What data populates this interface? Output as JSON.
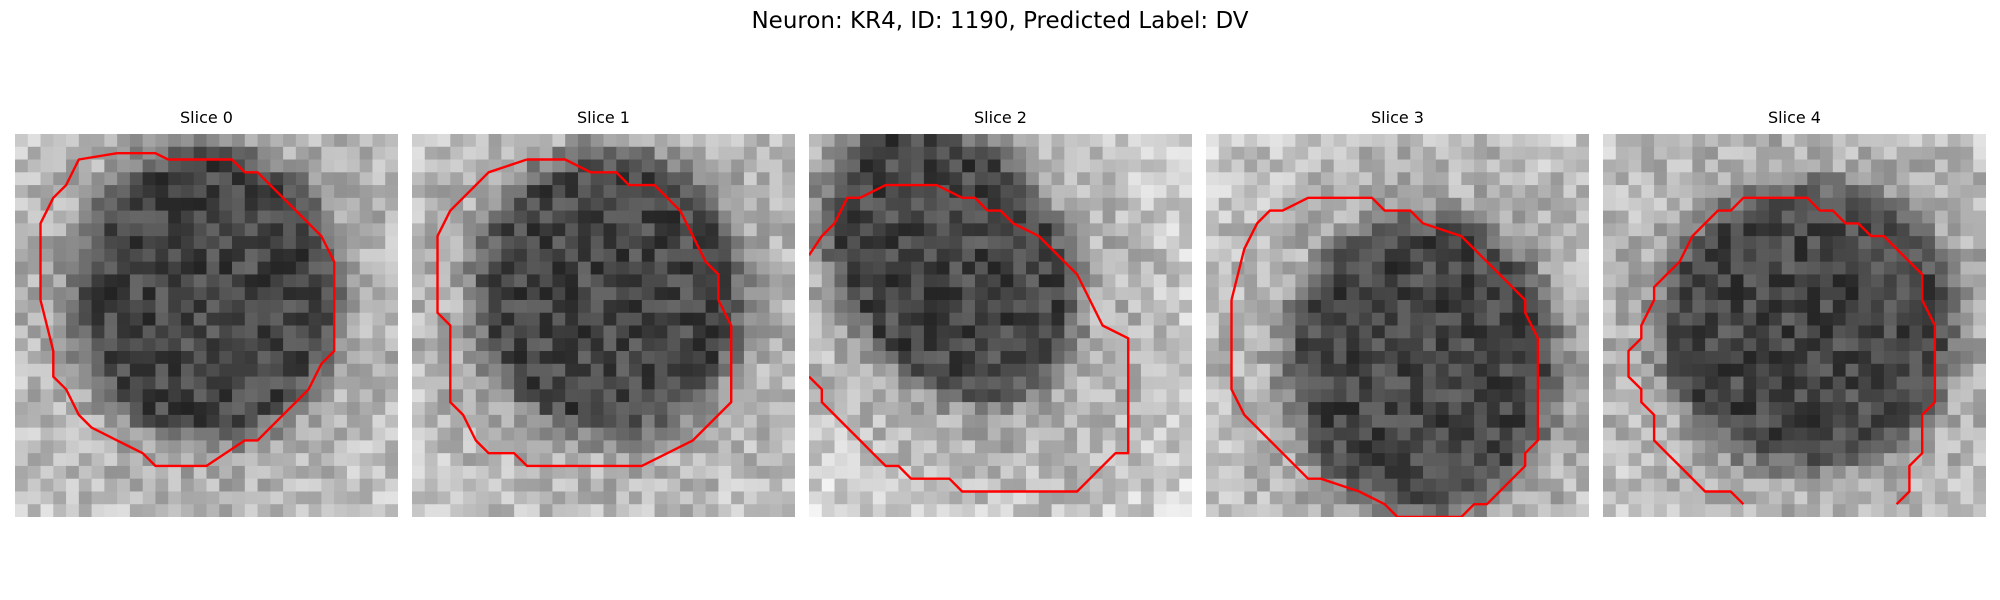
{
  "figure": {
    "title": "Neuron: KR4, ID: 1190, Predicted Label: DV"
  },
  "panels": [
    {
      "title": "Slice 0"
    },
    {
      "title": "Slice 1"
    },
    {
      "title": "Slice 2"
    },
    {
      "title": "Slice 3"
    },
    {
      "title": "Slice 4"
    }
  ],
  "colors": {
    "contour": "#ff0000",
    "background": "#ffffff"
  },
  "image_style": {
    "colormap": "grayscale",
    "grid_size": 30
  }
}
